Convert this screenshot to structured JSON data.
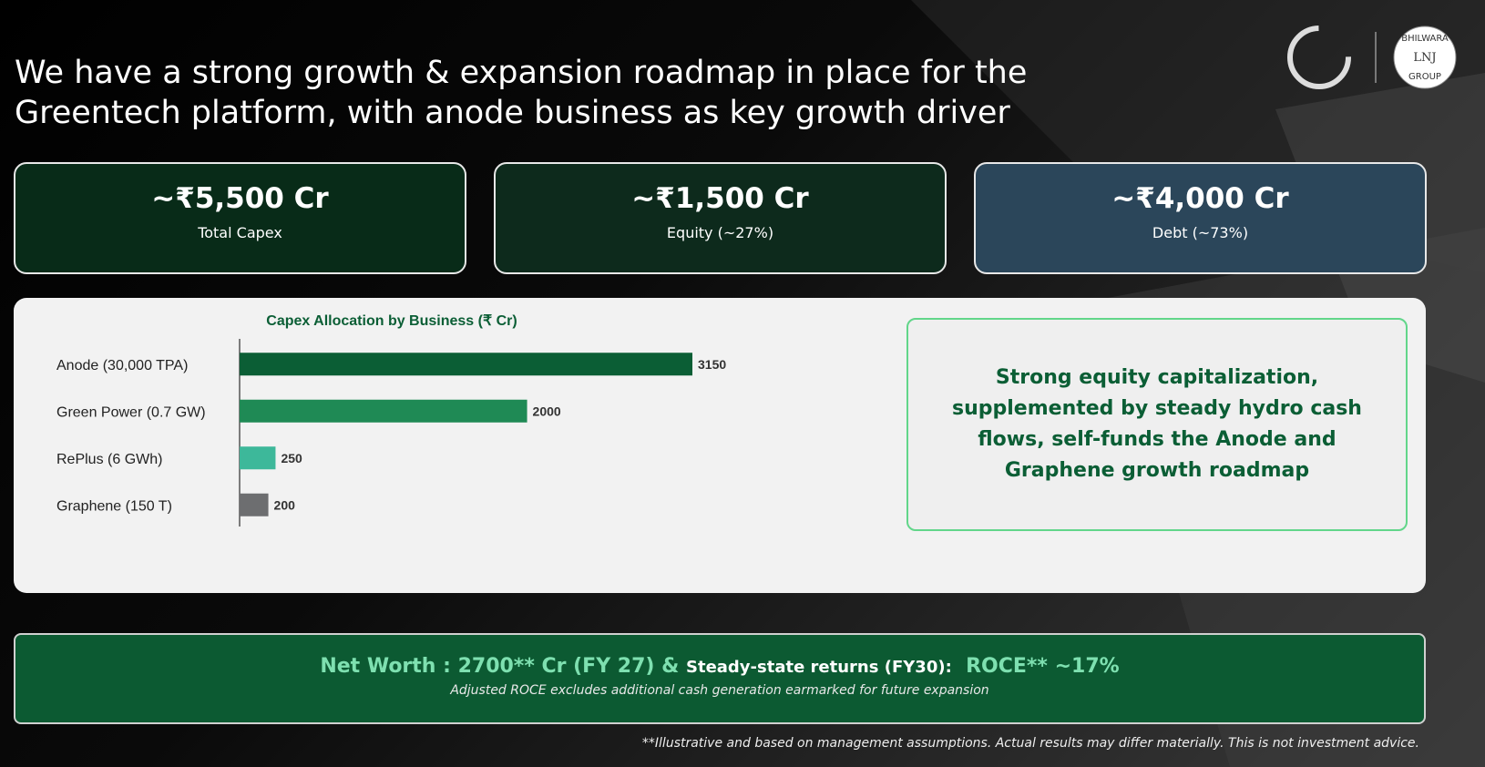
{
  "title_lines": [
    "We have a strong growth & expansion roadmap in place for the",
    "Greentech platform, with anode business as key growth driver"
  ],
  "logo": {
    "lines": [
      "BHILWARA",
      "LNJ",
      "GROUP"
    ]
  },
  "cards": [
    {
      "value": "~₹5,500 Cr",
      "label": "Total Capex"
    },
    {
      "value": "~₹1,500 Cr",
      "label": "Equity  (~27%)"
    },
    {
      "value": "~₹4,000 Cr",
      "label": "Debt  (~73%)"
    }
  ],
  "chart_data": {
    "type": "bar",
    "orientation": "horizontal",
    "title": "Capex Allocation by Business (₹ Cr)",
    "categories": [
      "Anode (30,000 TPA)",
      "Green Power (0.7 GW)",
      "RePlus (6 GWh)",
      "Graphene (150 T)"
    ],
    "values": [
      3150,
      2000,
      250,
      200
    ],
    "colors": [
      "#0b5e35",
      "#1f8a55",
      "#3db89a",
      "#6d6e70"
    ]
  },
  "callout": "Strong equity capitalization, supplemented by steady hydro cash flows, self-funds the Anode and Graphene growth roadmap",
  "summary": {
    "part1": "Net Worth : 2700** Cr (FY 27) &",
    "part2": "Steady-state returns (FY30):",
    "part3": "ROCE** ~17%",
    "note": "Adjusted ROCE excludes additional cash generation earmarked for future expansion"
  },
  "footnote": "**Illustrative and based on management assumptions. Actual results may differ materially. This is not investment advice."
}
